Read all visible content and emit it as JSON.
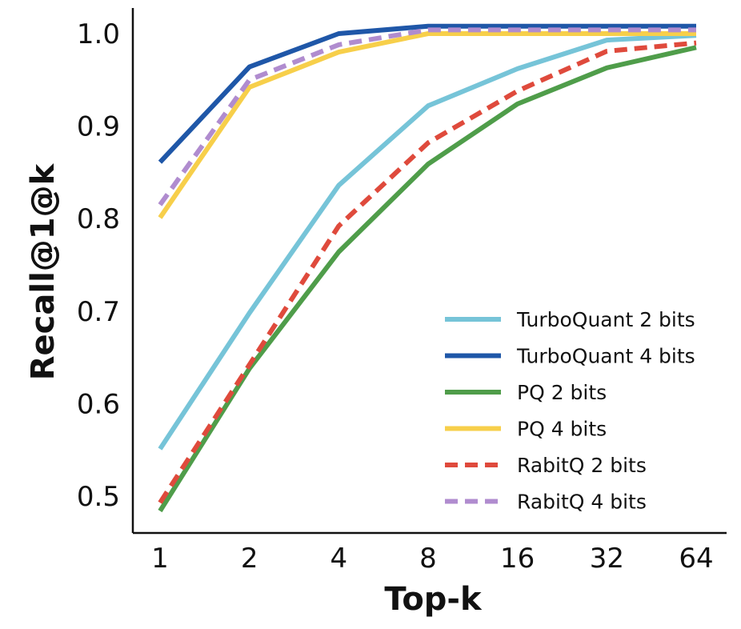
{
  "chart_data": {
    "type": "line",
    "xlabel": "Top-k",
    "ylabel": "Recall@1@k",
    "categories": [
      "1",
      "2",
      "4",
      "8",
      "16",
      "32",
      "64"
    ],
    "x_scale": "log2",
    "ylim": [
      0.47,
      1.02
    ],
    "yticks": [
      "0.5",
      "0.6",
      "0.7",
      "0.8",
      "0.9",
      "1.0"
    ],
    "grid": false,
    "legend_position": "bottom-right",
    "series": [
      {
        "name": "TurboQuant 2 bits",
        "color": "#76c4d8",
        "dashed": false,
        "values": [
          0.551,
          0.698,
          0.836,
          0.922,
          0.962,
          0.993,
          0.998
        ]
      },
      {
        "name": "TurboQuant 4 bits",
        "color": "#1f57a8",
        "dashed": false,
        "values": [
          0.861,
          0.964,
          1.0,
          1.008,
          1.008,
          1.008,
          1.008
        ]
      },
      {
        "name": "PQ 2 bits",
        "color": "#4f9d4a",
        "dashed": false,
        "values": [
          0.484,
          0.638,
          0.764,
          0.859,
          0.924,
          0.963,
          0.985
        ]
      },
      {
        "name": "PQ 4 bits",
        "color": "#f7cf4a",
        "dashed": false,
        "values": [
          0.801,
          0.942,
          0.98,
          1.0,
          1.0,
          1.0,
          1.0
        ]
      },
      {
        "name": "RabitQ 2 bits",
        "color": "#df4a3c",
        "dashed": true,
        "values": [
          0.493,
          0.642,
          0.792,
          0.882,
          0.938,
          0.981,
          0.99
        ]
      },
      {
        "name": "RabitQ 4 bits",
        "color": "#b08ccf",
        "dashed": true,
        "values": [
          0.815,
          0.95,
          0.988,
          1.004,
          1.004,
          1.004,
          1.004
        ]
      }
    ]
  }
}
